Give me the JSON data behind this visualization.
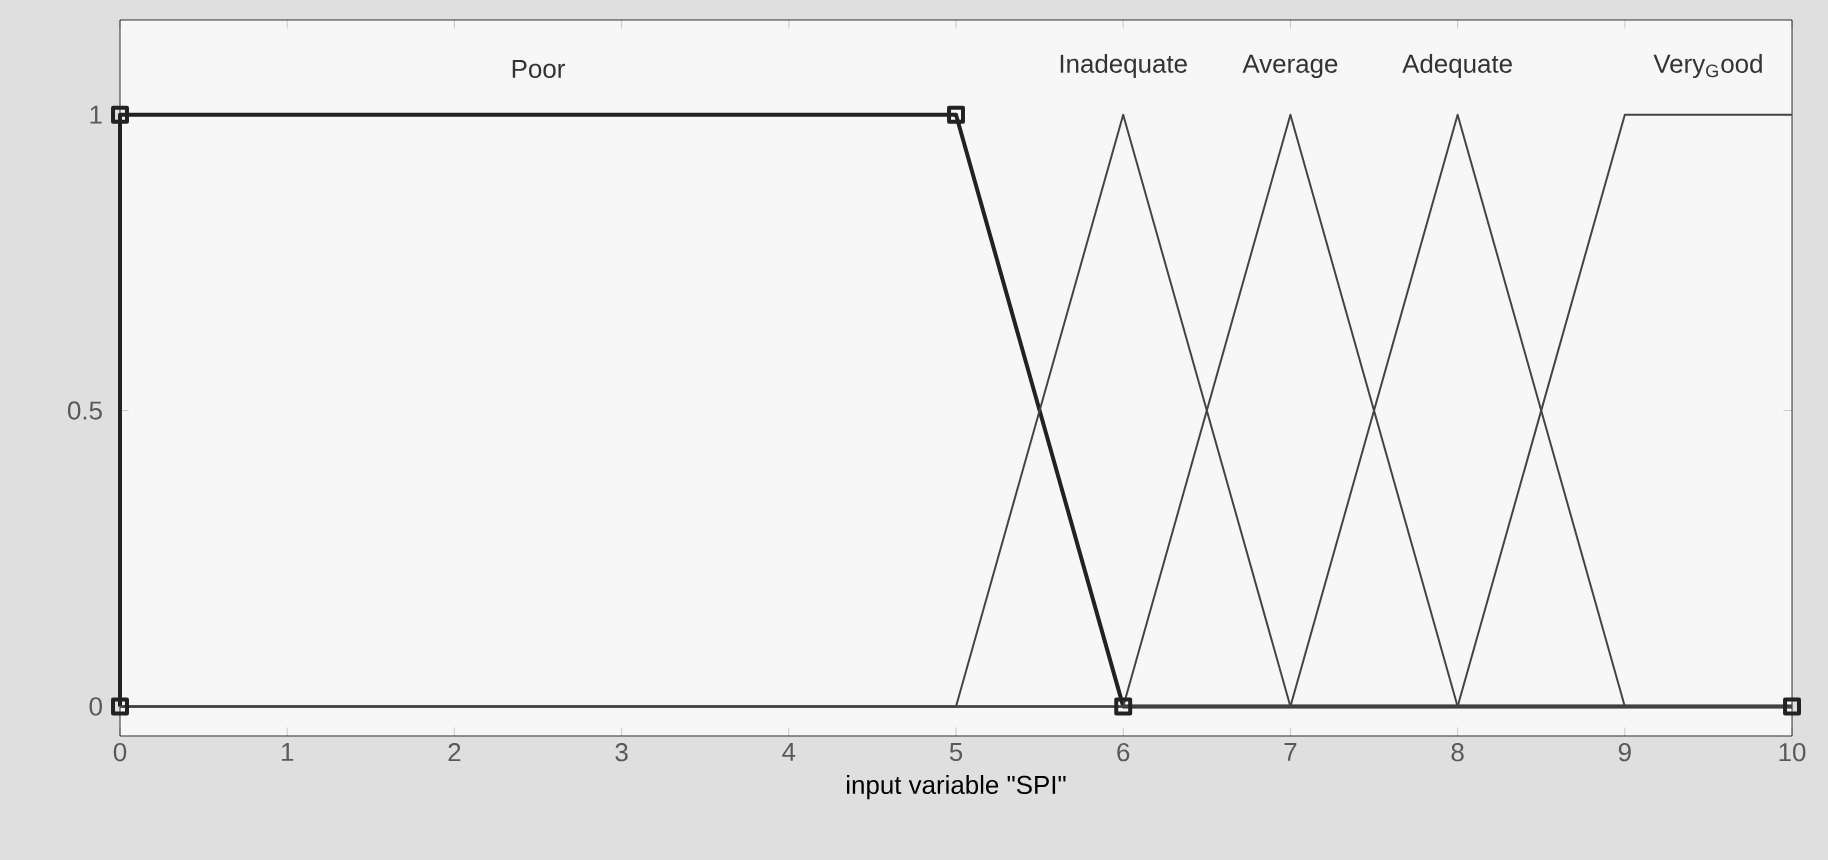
{
  "chart_data": {
    "type": "line",
    "xlabel": "input variable \"SPI\"",
    "xlim": [
      0,
      10
    ],
    "ylim": [
      -0.05,
      1.16
    ],
    "xticks": [
      0,
      1,
      2,
      3,
      4,
      5,
      6,
      7,
      8,
      9,
      10
    ],
    "yticks": [
      0,
      0.5,
      1
    ],
    "grid": false,
    "series": [
      {
        "name": "Poor",
        "color": "#222222",
        "marker": "square",
        "x": [
          0,
          0,
          5,
          6,
          10
        ],
        "values": [
          0,
          1,
          1,
          0,
          0
        ]
      },
      {
        "name": "Inadequate",
        "color": "#444444",
        "marker": "none",
        "x": [
          0,
          5,
          6,
          7,
          10
        ],
        "values": [
          0,
          0,
          1,
          0,
          0
        ]
      },
      {
        "name": "Average",
        "color": "#444444",
        "marker": "none",
        "x": [
          0,
          6,
          7,
          8,
          10
        ],
        "values": [
          0,
          0,
          1,
          0,
          0
        ]
      },
      {
        "name": "Adequate",
        "color": "#444444",
        "marker": "none",
        "x": [
          0,
          7,
          8,
          9,
          10
        ],
        "values": [
          0,
          0,
          1,
          0,
          0
        ]
      },
      {
        "name": "Very$_{G}$ood",
        "color": "#444444",
        "marker": "none",
        "x": [
          0,
          8,
          9,
          10
        ],
        "values": [
          0,
          0,
          1,
          1
        ]
      }
    ]
  }
}
